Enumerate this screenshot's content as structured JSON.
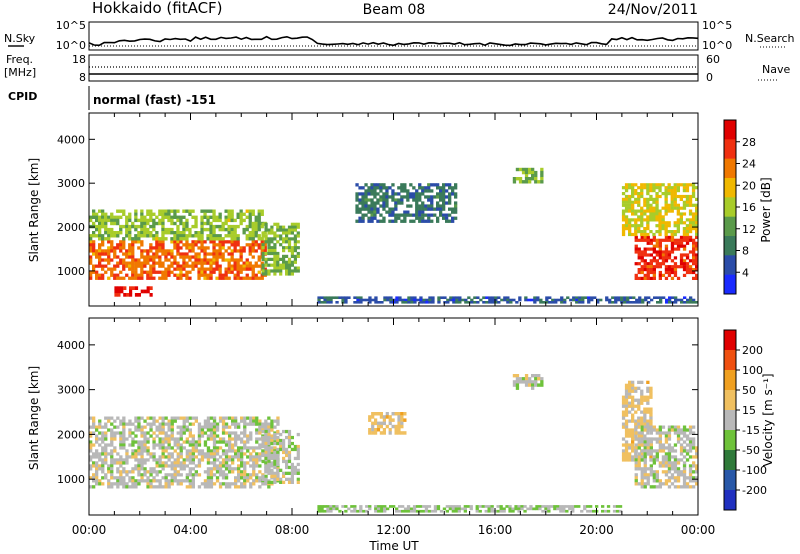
{
  "header": {
    "station": "Hokkaido (fitACF)",
    "beam": "Beam 08",
    "date": "24/Nov/2011"
  },
  "summary_panels": {
    "left_labels": {
      "nsky": "N.Sky",
      "freq": "Freq.",
      "mhz": "[MHz]",
      "cpid": "CPID"
    },
    "right_labels": {
      "nsearch": "N.Search",
      "nave": "Nave"
    },
    "top_ticks_left": [
      "10^5",
      "10^0"
    ],
    "top_ticks_right": [
      "10^5",
      "10^0"
    ],
    "freq_ticks": [
      "18",
      "8"
    ],
    "nave_ticks": [
      "60",
      "0"
    ],
    "cpid_text": "normal (fast) -151"
  },
  "colors": {
    "power_scale": [
      "#1a2bff",
      "#2b4ca8",
      "#3a7a5a",
      "#5a9a4a",
      "#a8cc2a",
      "#f0b800",
      "#f07800",
      "#f03010",
      "#e00000"
    ],
    "velocity_scale": [
      "#2030c0",
      "#2858a8",
      "#2f7a3a",
      "#6ec23a",
      "#b8b8b8",
      "#f0c060",
      "#f0a020",
      "#f05010",
      "#e00000"
    ],
    "ground_scatter": "#b8b8b8"
  },
  "chart_data": [
    {
      "type": "heatmap",
      "name": "power",
      "ylabel": "Slant Range [km]",
      "yticks": [
        "4000",
        "3000",
        "2000",
        "1000"
      ],
      "ylim": [
        200,
        4600
      ],
      "xlim": [
        "00:00",
        "24:00"
      ],
      "colorbar": {
        "label": "Power [dB]",
        "ticks": [
          "28",
          "24",
          "20",
          "16",
          "12",
          "8",
          "4"
        ],
        "range": [
          0,
          32
        ]
      },
      "regions": [
        {
          "t": [
            0.0,
            7.0
          ],
          "r": [
            800,
            1700
          ],
          "v": 24
        },
        {
          "t": [
            0.0,
            7.0
          ],
          "r": [
            1700,
            2400
          ],
          "v": 15
        },
        {
          "t": [
            1.0,
            2.5
          ],
          "r": [
            420,
            650
          ],
          "v": 29
        },
        {
          "t": [
            6.8,
            8.3
          ],
          "r": [
            900,
            2100
          ],
          "v": 14
        },
        {
          "t": [
            9.0,
            24.0
          ],
          "r": [
            260,
            420
          ],
          "v": 6
        },
        {
          "t": [
            16.7,
            17.9
          ],
          "r": [
            3000,
            3350
          ],
          "v": 14
        },
        {
          "t": [
            10.5,
            14.5
          ],
          "r": [
            2100,
            3000
          ],
          "v": 8
        },
        {
          "t": [
            21.5,
            24.0
          ],
          "r": [
            800,
            1800
          ],
          "v": 27
        },
        {
          "t": [
            21.0,
            24.0
          ],
          "r": [
            1800,
            3000
          ],
          "v": 18
        }
      ]
    },
    {
      "type": "heatmap",
      "name": "velocity",
      "ylabel": "Slant Range [km]",
      "yticks": [
        "4000",
        "3000",
        "2000",
        "1000"
      ],
      "ylim": [
        200,
        4600
      ],
      "xlim": [
        "00:00",
        "24:00"
      ],
      "xticks": [
        "00:00",
        "04:00",
        "08:00",
        "12:00",
        "16:00",
        "20:00",
        "00:00"
      ],
      "xlabel": "Time UT",
      "colorbar": {
        "label": "Velocity [m s⁻¹]",
        "ticks": [
          "200",
          "100",
          "50",
          "15",
          "-15",
          "-50",
          "-100",
          "-200"
        ],
        "range": [
          -250,
          250
        ]
      },
      "regions": [
        {
          "t": [
            0.0,
            7.5
          ],
          "r": [
            800,
            2400
          ],
          "v": 0
        },
        {
          "t": [
            6.8,
            8.3
          ],
          "r": [
            900,
            2100
          ],
          "v": 0
        },
        {
          "t": [
            9.0,
            21.0
          ],
          "r": [
            260,
            420
          ],
          "v": -30
        },
        {
          "t": [
            16.7,
            17.9
          ],
          "r": [
            3000,
            3350
          ],
          "v": 0
        },
        {
          "t": [
            11.0,
            12.5
          ],
          "r": [
            2000,
            2500
          ],
          "v": 45
        },
        {
          "t": [
            21.0,
            22.2
          ],
          "r": [
            1400,
            3200
          ],
          "v": 40
        },
        {
          "t": [
            21.5,
            24.0
          ],
          "r": [
            800,
            2200
          ],
          "v": 0
        }
      ]
    }
  ]
}
